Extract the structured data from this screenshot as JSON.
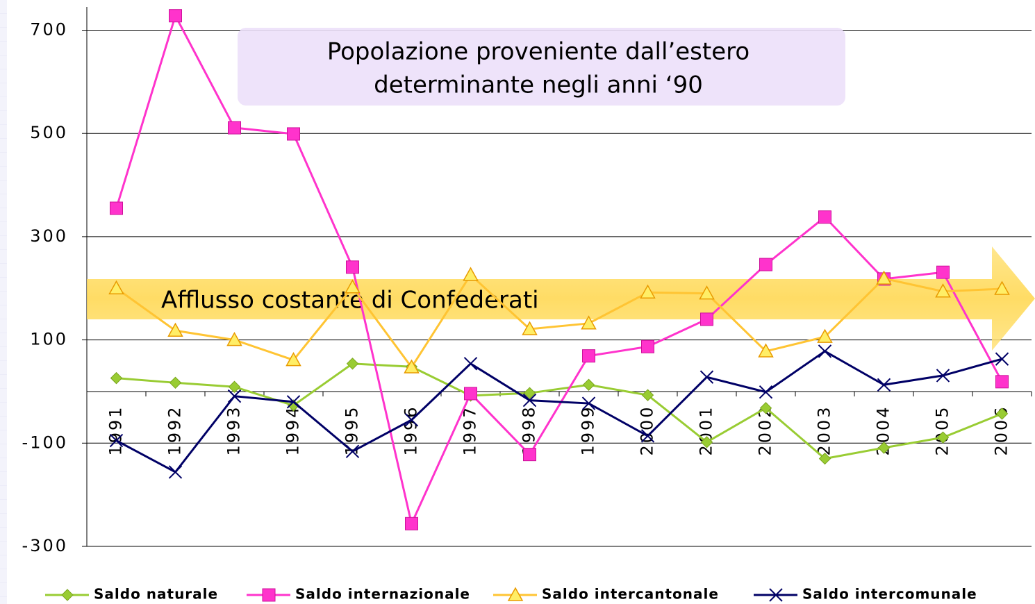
{
  "chart_data": {
    "type": "line",
    "callout": [
      "Popolazione proveniente dall’estero",
      "determinante negli anni ‘90"
    ],
    "arrow_label": "Afflusso costante di Confederati",
    "categories": [
      "1991",
      "1992",
      "1993",
      "1994",
      "1995",
      "1996",
      "1997",
      "1998",
      "1999",
      "2000",
      "2001",
      "2002",
      "2003",
      "2004",
      "2005",
      "2006"
    ],
    "series": [
      {
        "name": "Saldo naturale",
        "color": "#99cc33",
        "marker": "diamond",
        "values": [
          26,
          17,
          9,
          -27,
          54,
          48,
          -8,
          -3,
          13,
          -7,
          -98,
          -32,
          -130,
          -109,
          -89,
          -43
        ]
      },
      {
        "name": "Saldo internazionale",
        "color": "#ff33cc",
        "marker": "square",
        "values": [
          355,
          728,
          511,
          499,
          241,
          -256,
          -4,
          -122,
          69,
          87,
          140,
          246,
          338,
          218,
          231,
          19
        ]
      },
      {
        "name": "Saldo intercantonale",
        "color": "#ffc433",
        "marker": "triangle",
        "values": [
          200,
          118,
          100,
          61,
          202,
          47,
          226,
          121,
          132,
          192,
          190,
          78,
          106,
          219,
          194,
          199
        ]
      },
      {
        "name": "Saldo intercomunale",
        "color": "#000066",
        "marker": "x",
        "values": [
          -95,
          -156,
          -9,
          -20,
          -116,
          -55,
          54,
          -17,
          -23,
          -86,
          28,
          -1,
          78,
          13,
          31,
          63
        ]
      }
    ],
    "ylim": [
      -300,
      745
    ],
    "yticks": [
      -300,
      -100,
      100,
      300,
      500,
      700
    ],
    "grid": true,
    "legend": "bottom"
  }
}
